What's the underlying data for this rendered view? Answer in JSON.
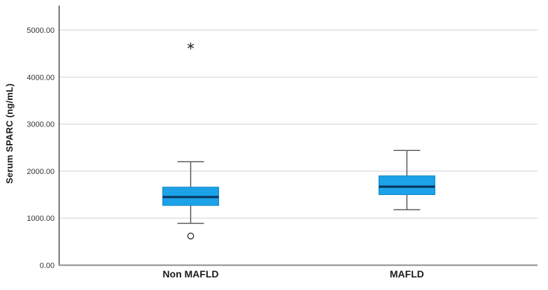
{
  "chart_data": {
    "type": "box",
    "title": "",
    "xlabel": "",
    "ylabel": "Serum SPARC (ng/mL)",
    "categories": [
      "Non MAFLD",
      "MAFLD"
    ],
    "y_axis": {
      "min": 0,
      "max": 5500,
      "ticks": [
        {
          "value": 0,
          "label": "0.00"
        },
        {
          "value": 1000,
          "label": "1000.00"
        },
        {
          "value": 2000,
          "label": "2000.00"
        },
        {
          "value": 3000,
          "label": "3000.00"
        },
        {
          "value": 4000,
          "label": "4000.00"
        },
        {
          "value": 5000,
          "label": "5000.00"
        }
      ]
    },
    "grid": true,
    "legend": false,
    "series": [
      {
        "category": "Non MAFLD",
        "whisker_low": 890,
        "q1": 1270,
        "median": 1450,
        "q3": 1660,
        "whisker_high": 2200,
        "outliers": [
          {
            "value": 620,
            "marker": "circle"
          },
          {
            "value": 4660,
            "marker": "asterisk"
          }
        ]
      },
      {
        "category": "MAFLD",
        "whisker_low": 1180,
        "q1": 1500,
        "median": 1670,
        "q3": 1900,
        "whisker_high": 2440,
        "outliers": []
      }
    ],
    "colors": {
      "box_fill": "#1BA2E8",
      "box_border": "#0E86C7",
      "median": "#0A3560",
      "whisker": "#4F4F4F",
      "gridline": "#D8D8D8",
      "axis_y": "#3F3F3F",
      "axis_x": "#8C8C8C",
      "outlier": "#2B2B2B",
      "tick_text": "#333333",
      "category_text": "#1A1A1A"
    }
  }
}
